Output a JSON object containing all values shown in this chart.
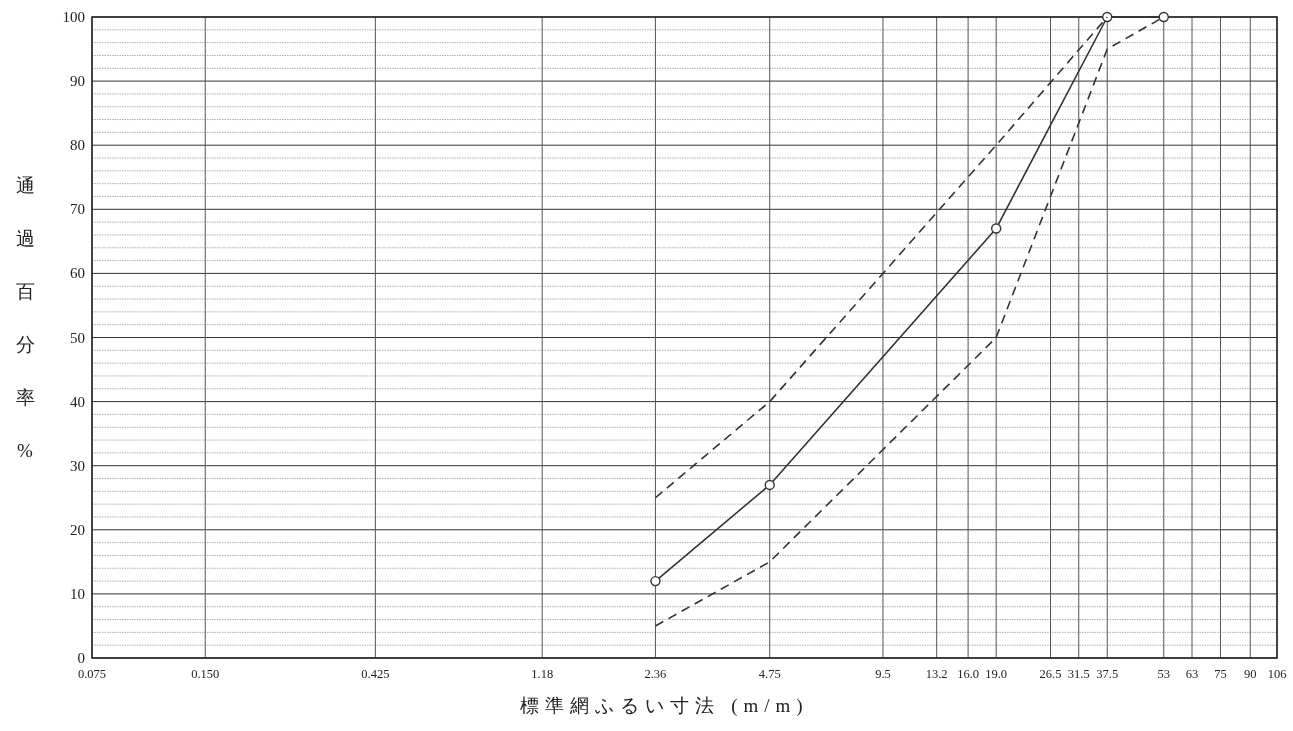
{
  "chart_data": {
    "type": "line",
    "xlabel": "標準網ふるい寸法 (m/m)",
    "ylabel": "通過百分率%",
    "log": "x",
    "grid": true,
    "xlim": [
      0.075,
      106
    ],
    "ylim": [
      0,
      100
    ],
    "xticks": [
      0.075,
      {
        "value": 0.15,
        "label": "0.150"
      },
      0.425,
      1.18,
      2.36,
      4.75,
      9.5,
      13.2,
      {
        "value": 16,
        "label": "16.0"
      },
      {
        "value": 19,
        "label": "19.0"
      },
      26.5,
      31.5,
      37.5,
      53,
      63,
      75,
      90,
      106
    ],
    "yticks": [
      0,
      {
        "value": 2,
        "label": null
      },
      {
        "value": 4,
        "label": null
      },
      {
        "value": 6,
        "label": null
      },
      {
        "value": 8,
        "label": null
      },
      10,
      {
        "value": 12,
        "label": null
      },
      {
        "value": 14,
        "label": null
      },
      {
        "value": 16,
        "label": null
      },
      {
        "value": 18,
        "label": null
      },
      20,
      {
        "value": 22,
        "label": null
      },
      {
        "value": 24,
        "label": null
      },
      {
        "value": 26,
        "label": null
      },
      {
        "value": 28,
        "label": null
      },
      30,
      {
        "value": 32,
        "label": null
      },
      {
        "value": 34,
        "label": null
      },
      {
        "value": 36,
        "label": null
      },
      {
        "value": 38,
        "label": null
      },
      40,
      {
        "value": 42,
        "label": null
      },
      {
        "value": 44,
        "label": null
      },
      {
        "value": 46,
        "label": null
      },
      {
        "value": 48,
        "label": null
      },
      50,
      {
        "value": 52,
        "label": null
      },
      {
        "value": 54,
        "label": null
      },
      {
        "value": 56,
        "label": null
      },
      {
        "value": 58,
        "label": null
      },
      60,
      {
        "value": 62,
        "label": null
      },
      {
        "value": 64,
        "label": null
      },
      {
        "value": 66,
        "label": null
      },
      {
        "value": 68,
        "label": null
      },
      70,
      {
        "value": 72,
        "label": null
      },
      {
        "value": 74,
        "label": null
      },
      {
        "value": 76,
        "label": null
      },
      {
        "value": 78,
        "label": null
      },
      80,
      {
        "value": 82,
        "label": null
      },
      {
        "value": 84,
        "label": null
      },
      {
        "value": 86,
        "label": null
      },
      {
        "value": 88,
        "label": null
      },
      90,
      {
        "value": 92,
        "label": null
      },
      {
        "value": 94,
        "label": null
      },
      {
        "value": 96,
        "label": null
      },
      {
        "value": 98,
        "label": null
      },
      100
    ],
    "series": [
      {
        "color": "#333333",
        "x": [
          2.36,
          4.75,
          19,
          37.5,
          53
        ],
        "values": [
          12,
          27,
          67,
          100,
          100
        ],
        "marker": "circle",
        "line_style": "solid"
      },
      {
        "color": "#333333",
        "x": [
          2.36,
          4.75,
          19,
          37.5
        ],
        "values": [
          25,
          40,
          80,
          100
        ],
        "marker": "none",
        "line_style": "dashed"
      },
      {
        "color": "#333333",
        "x": [
          2.36,
          4.75,
          19,
          37.5,
          53
        ],
        "values": [
          5,
          15,
          50,
          95,
          100
        ],
        "marker": "none",
        "line_style": "dashed"
      }
    ]
  }
}
